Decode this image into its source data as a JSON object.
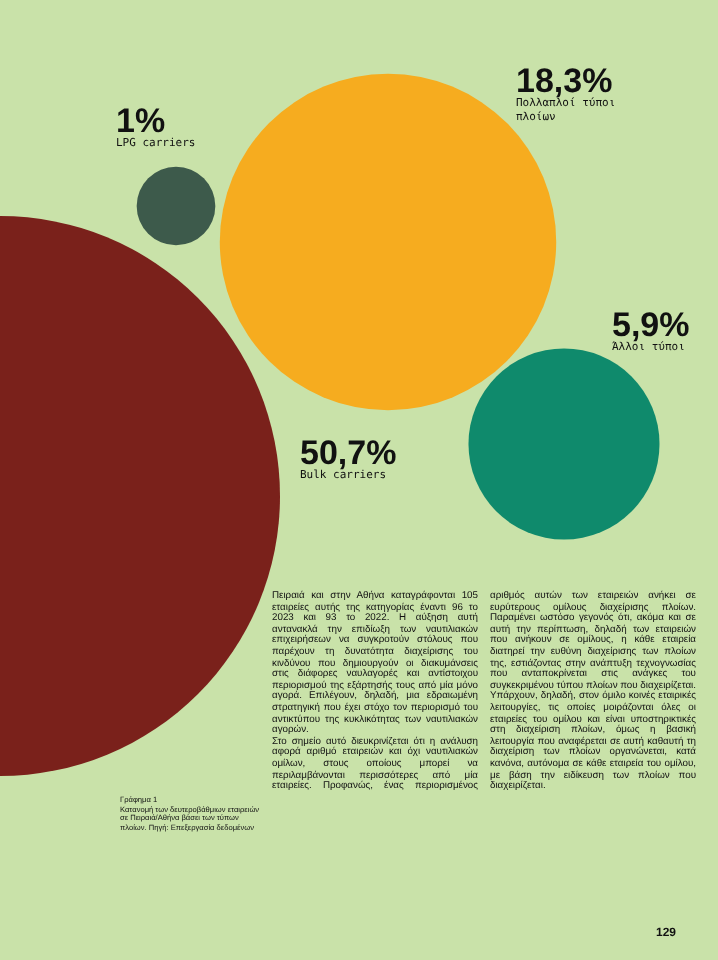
{
  "chart_data": {
    "type": "other",
    "categories": [
      "Bulk carriers",
      "Πολλαπλοί τύποι πλοίων",
      "Άλλοι τύποι",
      "LPG carriers"
    ],
    "values": [
      50.7,
      18.3,
      5.9,
      1
    ],
    "value_labels": [
      "50,7%",
      "18,3%",
      "5,9%",
      "1%"
    ],
    "colors": [
      "#7a211b",
      "#f6ac1f",
      "#0f8a6c",
      "#3d5a4b"
    ],
    "annotations": [
      "Γράφημα 1",
      "Κατανομή των δευτεροβάθμιων εταιρειών σε Πειραιά/Αθήνα βάσει των τύπων πλοίων. Πηγή: Επεξεργασία δεδομένων",
      "Πειραιά και στην Αθήνα καταγράφονται 105 εταιρείες αυτής της κατηγορίας έναντι 96 το 2023 και 93 το 2022. Η αύξηση αυτή αντανακλά την επιδίωξη των ναυτιλιακών επιχειρήσεων να συγκροτούν στόλους που παρέχουν τη δυνατότητα διαχείρισης του κινδύνου που δημιουργούν οι διακυμάνσεις στις διάφορες ναυλαγορές και αντίστοιχου περιορισμού της εξάρτησής τους από μία μόνο αγορά. Επιλέγουν, δηλαδή, μια εδραιωμένη στρατηγική που έχει στόχο τον περιορισμό του αντικτύπου της κυκλικότητας των ναυτιλιακών αγορών.",
      "Στο σημείο αυτό διευκρινίζεται ότι η ανάλυση αφορά αριθμό εταιρειών και όχι ναυτιλιακών ομίλων, στους οποίους μπορεί να περιλαμβάνονται περισσότερες από μία εταιρείες. Προφανώς, ένας περιορισμένος αριθμός αυτών των εταιρειών ανήκει σε ευρύτερους ομίλους διαχείρισης πλοίων. Παραμένει ωστόσο γεγονός ότι, ακόμα και σε αυτή την περίπτωση, δηλαδή των εταιρειών που ανήκουν σε ομίλους, η κάθε εταιρεία διατηρεί την ευθύνη διαχείρισης των πλοίων της, εστιάζοντας στην ανάπτυξη τεχνογνωσίας που ανταποκρίνεται στις ανάγκες του συγκεκριμένου τύπου πλοίων που διαχειρίζεται. Υπάρχουν, δηλαδή, στον όμιλο κοινές εταιρικές λειτουργίες, τις οποίες μοιράζονται όλες οι εταιρείες του ομίλου και είναι υποστηρικτικές στη διαχείριση πλοίων, όμως η βασική λειτουργία που αναφέρεται σε αυτή καθαυτή τη διαχείριση των πλοίων οργανώνεται, κατά κανόνα, αυτόνομα σε κάθε εταιρεία του ομίλου, με βάση την ειδίκευση των πλοίων που διαχειρίζεται.",
      "129"
    ]
  }
}
